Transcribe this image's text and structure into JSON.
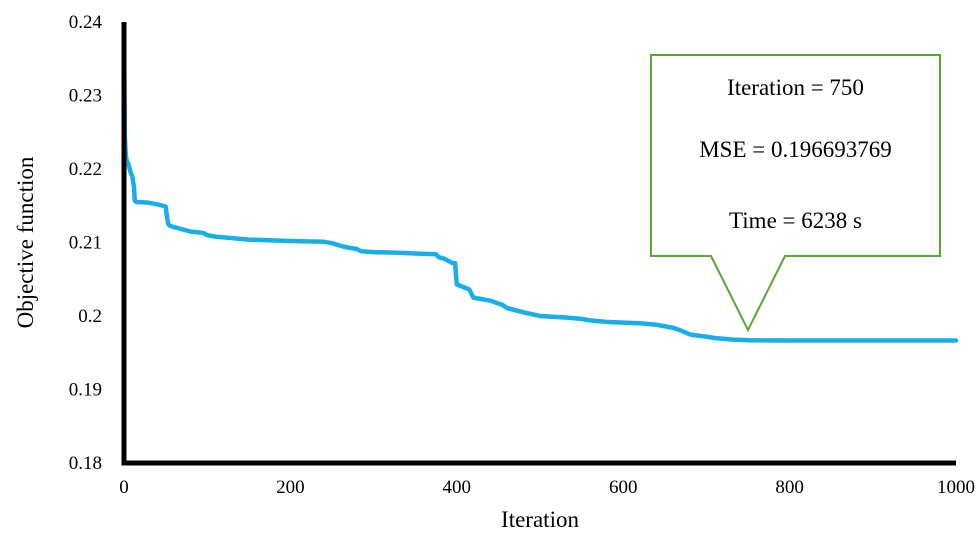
{
  "chart_data": {
    "type": "line",
    "xlabel": "Iteration",
    "ylabel": "Objective function",
    "xlim": [
      0,
      1000
    ],
    "ylim": [
      0.18,
      0.24
    ],
    "x_ticks": [
      0,
      200,
      400,
      600,
      800,
      1000
    ],
    "y_ticks": [
      0.18,
      0.19,
      0.2,
      0.21,
      0.22,
      0.23,
      0.24
    ],
    "x_tick_labels": [
      "0",
      "200",
      "400",
      "600",
      "800",
      "1000"
    ],
    "y_tick_labels": [
      "0.18",
      "0.19",
      "0.2",
      "0.21",
      "0.22",
      "0.23",
      "0.24"
    ],
    "grid": false,
    "legend": "none",
    "series": [
      {
        "color": "#1aaee8",
        "x": [
          0,
          1,
          2,
          3,
          5,
          8,
          10,
          12,
          13,
          15,
          20,
          30,
          40,
          50,
          53,
          55,
          60,
          70,
          80,
          95,
          100,
          110,
          130,
          150,
          200,
          240,
          250,
          265,
          280,
          285,
          300,
          330,
          350,
          375,
          378,
          385,
          395,
          398,
          400,
          415,
          420,
          440,
          455,
          460,
          480,
          500,
          530,
          550,
          560,
          580,
          600,
          620,
          640,
          660,
          670,
          680,
          685,
          700,
          710,
          730,
          750,
          770,
          800,
          850,
          900,
          1000
        ],
        "y": [
          0.2385,
          0.2245,
          0.222,
          0.2212,
          0.2208,
          0.2195,
          0.219,
          0.2175,
          0.2157,
          0.2155,
          0.2155,
          0.2154,
          0.2152,
          0.2149,
          0.2125,
          0.2123,
          0.2121,
          0.2118,
          0.2115,
          0.2113,
          0.211,
          0.2108,
          0.2106,
          0.2104,
          0.2102,
          0.2101,
          0.2099,
          0.2094,
          0.2091,
          0.2088,
          0.2087,
          0.2086,
          0.2085,
          0.2084,
          0.208,
          0.2078,
          0.2072,
          0.2072,
          0.2043,
          0.2036,
          0.2025,
          0.2021,
          0.2015,
          0.2011,
          0.2005,
          0.2,
          0.1998,
          0.1996,
          0.1994,
          0.1992,
          0.1991,
          0.199,
          0.1988,
          0.1984,
          0.198,
          0.1975,
          0.1974,
          0.1972,
          0.197,
          0.1968,
          0.1967,
          0.19668,
          0.19667,
          0.19667,
          0.19667,
          0.19667
        ]
      }
    ],
    "annotation": {
      "lines": [
        "Iteration = 750",
        "MSE = 0.196693769",
        "Time = 6238 s"
      ],
      "pointer_x": 750,
      "pointer_y": 0.1981,
      "border_color": "#5aa832"
    }
  }
}
